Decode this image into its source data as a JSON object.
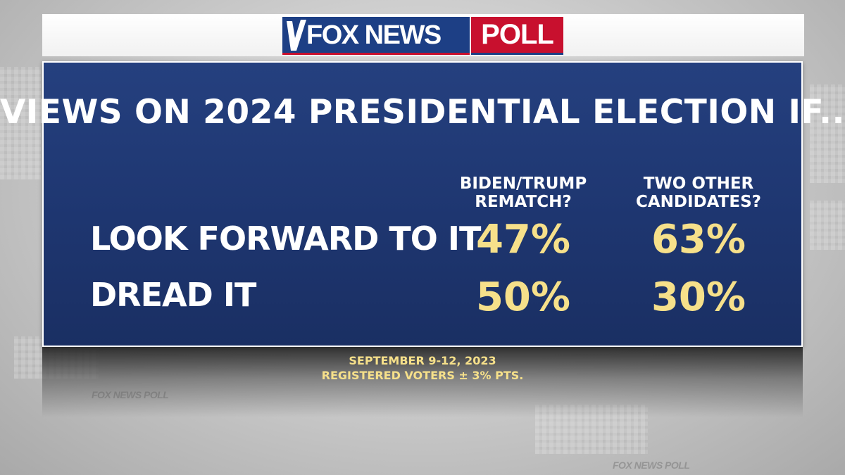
{
  "logo": {
    "brand": "FOX NEWS",
    "suffix": "POLL"
  },
  "colors": {
    "panel": "#1e3670",
    "value_text": "#f6e08a",
    "logo_blue": "#1d3f85",
    "logo_red": "#c8102e"
  },
  "chart_data": {
    "type": "table",
    "title": "VIEWS ON 2024 PRESIDENTIAL ELECTION IF...",
    "columns": [
      {
        "line1": "BIDEN/TRUMP",
        "line2": "REMATCH?"
      },
      {
        "line1": "TWO OTHER",
        "line2": "CANDIDATES?"
      }
    ],
    "rows": [
      {
        "label": "LOOK FORWARD TO IT",
        "display": [
          "47%",
          "63%"
        ],
        "values": [
          47,
          63
        ]
      },
      {
        "label": "DREAD IT",
        "display": [
          "50%",
          "30%"
        ],
        "values": [
          50,
          30
        ]
      }
    ],
    "unit": "%"
  },
  "footer": {
    "date": "SEPTEMBER 9-12, 2023",
    "sample": "REGISTERED VOTERS ± 3% PTS."
  }
}
